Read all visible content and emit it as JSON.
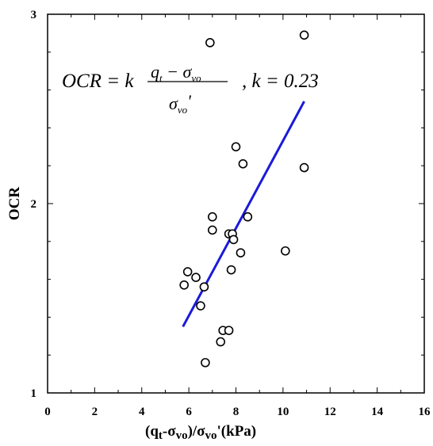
{
  "chart_data": {
    "type": "scatter",
    "title": "",
    "xlabel": {
      "open": "(q",
      "q_sub": "t",
      "minus": "-σ",
      "sigma_sub": "vo",
      "mid": ")/σ",
      "sigma2_sub": "vo",
      "unit": "'(kPa)"
    },
    "ylabel": "OCR",
    "xlim": [
      0,
      16
    ],
    "ylim": [
      1,
      3
    ],
    "x_ticks": [
      0,
      2,
      4,
      6,
      8,
      10,
      12,
      14,
      16
    ],
    "x_tick_labels": [
      "0",
      "2",
      "4",
      "6",
      "8",
      "10",
      "12",
      "14",
      "16"
    ],
    "x_minor_step": 1,
    "y_ticks": [
      1,
      2,
      3
    ],
    "y_tick_labels": [
      "1",
      "2",
      "3"
    ],
    "y_minor_step": 0.2,
    "grid": false,
    "series": [
      {
        "marker": "open-circle",
        "color": "#000000",
        "points": [
          [
            6.9,
            2.85
          ],
          [
            10.9,
            2.89
          ],
          [
            8.0,
            2.3
          ],
          [
            8.3,
            2.21
          ],
          [
            10.9,
            2.19
          ],
          [
            7.0,
            1.93
          ],
          [
            8.5,
            1.93
          ],
          [
            7.0,
            1.86
          ],
          [
            7.7,
            1.84
          ],
          [
            7.85,
            1.84
          ],
          [
            7.9,
            1.81
          ],
          [
            8.2,
            1.74
          ],
          [
            10.1,
            1.75
          ],
          [
            7.8,
            1.65
          ],
          [
            5.95,
            1.64
          ],
          [
            6.3,
            1.61
          ],
          [
            5.8,
            1.57
          ],
          [
            6.65,
            1.56
          ],
          [
            6.5,
            1.46
          ],
          [
            7.45,
            1.33
          ],
          [
            7.7,
            1.33
          ],
          [
            7.35,
            1.27
          ],
          [
            6.7,
            1.16
          ]
        ]
      },
      {
        "type": "line",
        "color": "#1a1adb",
        "points": [
          [
            5.75,
            1.35
          ],
          [
            10.9,
            2.54
          ]
        ]
      }
    ],
    "annotation": {
      "lhs": "OCR = k",
      "num_q": "q",
      "num_q_sub": "t",
      "num_minus": " − σ",
      "num_sigma_sub": "vo",
      "den_sigma": "σ",
      "den_sigma_sub": "vo",
      "den_prime": "'",
      "rhs": ",   k = 0.23"
    }
  }
}
